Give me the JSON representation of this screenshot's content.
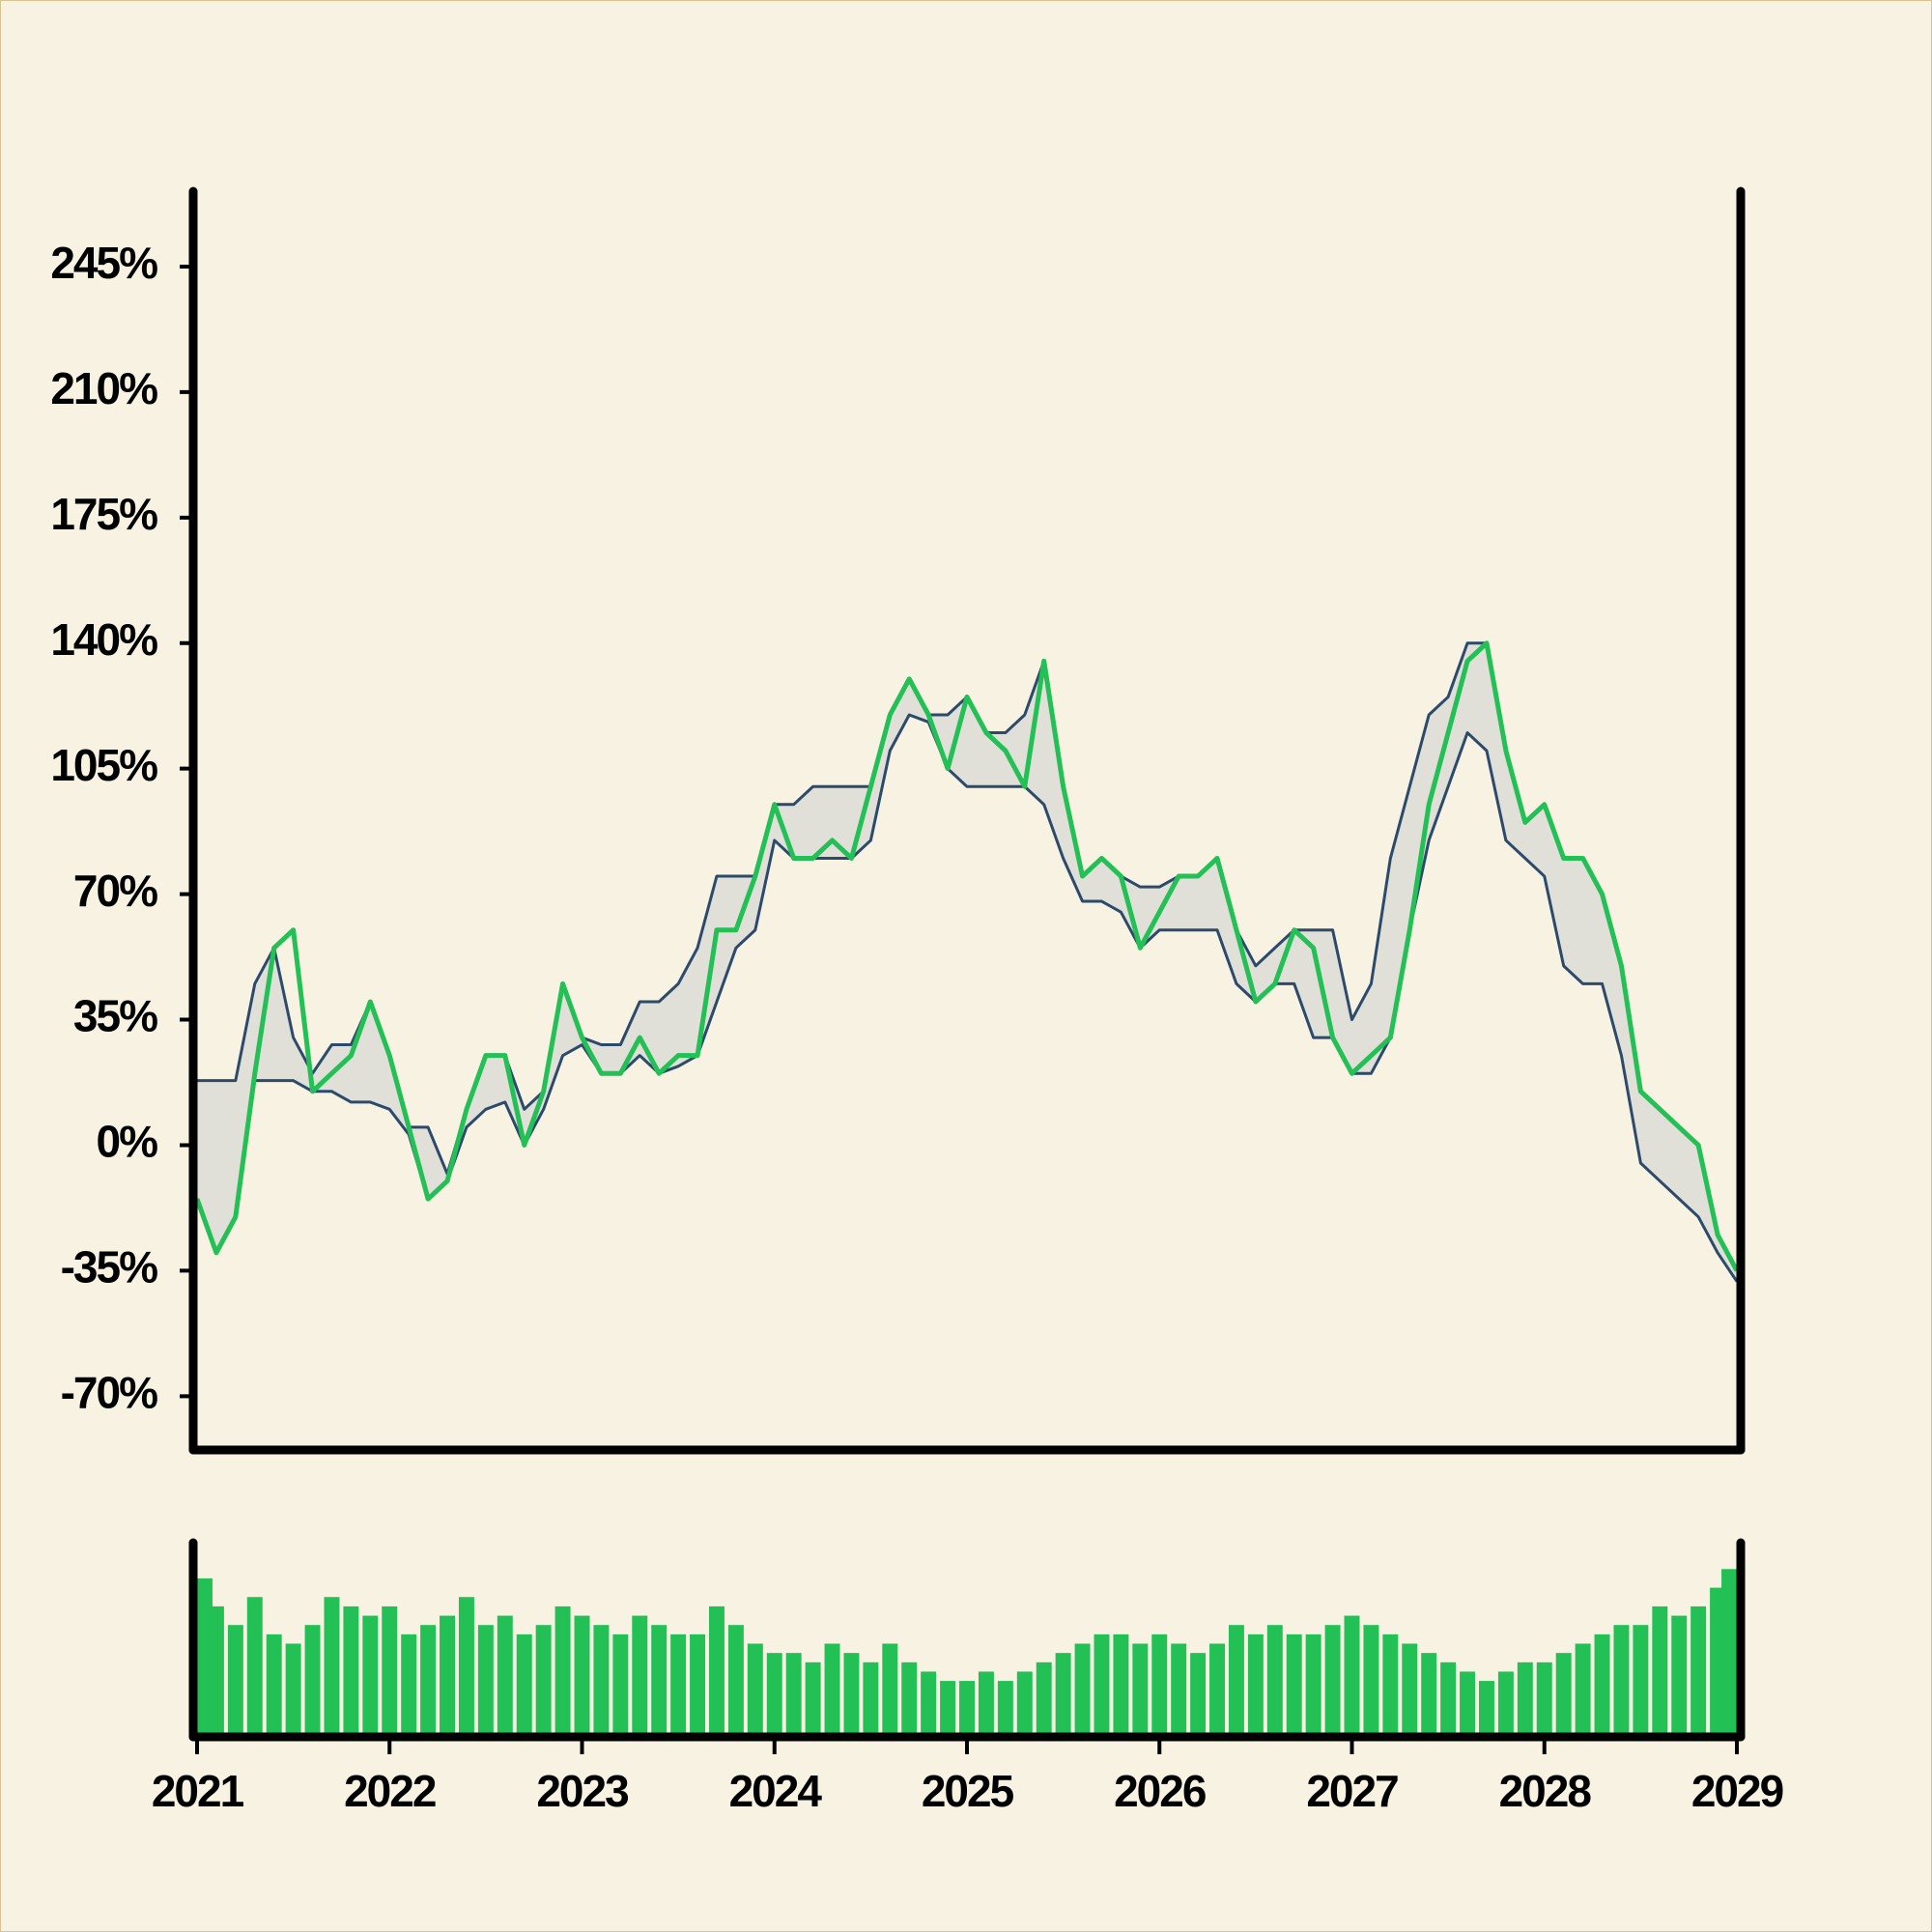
{
  "chart_data": {
    "type": "line",
    "x": [
      2021,
      2021.1,
      2021.2,
      2021.3,
      2021.4,
      2021.5,
      2021.6,
      2021.7,
      2021.8,
      2021.9,
      2022,
      2022.1,
      2022.2,
      2022.3,
      2022.4,
      2022.5,
      2022.6,
      2022.7,
      2022.8,
      2022.9,
      2023,
      2023.1,
      2023.2,
      2023.3,
      2023.4,
      2023.5,
      2023.6,
      2023.7,
      2023.8,
      2023.9,
      2024,
      2024.1,
      2024.2,
      2024.3,
      2024.4,
      2024.5,
      2024.6,
      2024.7,
      2024.8,
      2024.9,
      2025,
      2025.1,
      2025.2,
      2025.3,
      2025.4,
      2025.5,
      2025.6,
      2025.7,
      2025.8,
      2025.9,
      2026,
      2026.1,
      2026.2,
      2026.3,
      2026.4,
      2026.5,
      2026.6,
      2026.7,
      2026.8,
      2026.9,
      2027,
      2027.1,
      2027.2,
      2027.3,
      2027.4,
      2027.5,
      2027.6,
      2027.7,
      2027.8,
      2027.9,
      2028,
      2028.1,
      2028.2,
      2028.3,
      2028.4,
      2028.5,
      2028.6,
      2028.7,
      2028.8,
      2028.9,
      2029
    ],
    "series": [
      {
        "color": "#22c055",
        "values": [
          -15,
          -30,
          -20,
          20,
          55,
          60,
          15,
          20,
          25,
          40,
          25,
          5,
          -15,
          -10,
          10,
          25,
          25,
          0,
          15,
          45,
          30,
          20,
          20,
          30,
          20,
          25,
          25,
          60,
          60,
          75,
          95,
          80,
          80,
          85,
          80,
          100,
          120,
          130,
          120,
          105,
          125,
          115,
          110,
          100,
          135,
          100,
          75,
          80,
          75,
          55,
          65,
          75,
          75,
          80,
          60,
          40,
          45,
          60,
          55,
          30,
          20,
          25,
          30,
          60,
          95,
          115,
          135,
          140,
          110,
          90,
          95,
          80,
          80,
          70,
          50,
          15,
          10,
          5,
          0,
          -25,
          -35
        ]
      },
      {
        "color": "#2c4a6b",
        "values": [
          18,
          18,
          18,
          45,
          55,
          30,
          20,
          28,
          28,
          40,
          25,
          5,
          5,
          -8,
          10,
          25,
          25,
          10,
          15,
          45,
          30,
          28,
          28,
          40,
          40,
          45,
          55,
          75,
          75,
          75,
          95,
          95,
          100,
          100,
          100,
          100,
          120,
          130,
          120,
          120,
          125,
          115,
          115,
          120,
          135,
          100,
          75,
          80,
          75,
          72,
          72,
          75,
          75,
          80,
          60,
          50,
          55,
          60,
          60,
          60,
          35,
          45,
          80,
          100,
          120,
          125,
          140,
          140,
          110,
          90,
          95,
          80,
          80,
          70,
          50,
          15,
          10,
          5,
          0,
          -25,
          -35
        ]
      },
      {
        "color": "#2c4a6b",
        "values": [
          -15,
          -30,
          -20,
          18,
          18,
          18,
          15,
          15,
          12,
          12,
          10,
          3,
          -15,
          -10,
          5,
          10,
          12,
          0,
          10,
          25,
          28,
          20,
          20,
          25,
          20,
          22,
          25,
          40,
          55,
          60,
          85,
          80,
          80,
          80,
          80,
          85,
          110,
          120,
          118,
          105,
          100,
          100,
          100,
          100,
          95,
          80,
          68,
          68,
          65,
          55,
          60,
          60,
          60,
          60,
          45,
          40,
          45,
          45,
          30,
          30,
          20,
          20,
          30,
          60,
          85,
          100,
          115,
          110,
          85,
          80,
          75,
          50,
          45,
          45,
          25,
          -5,
          -10,
          -15,
          -20,
          -30,
          -38
        ]
      }
    ],
    "band_color": "#e0e0d8",
    "volume": {
      "color": "#22c055",
      "ylim": [
        0,
        100
      ],
      "values": [
        85,
        70,
        60,
        75,
        55,
        50,
        60,
        75,
        70,
        65,
        70,
        55,
        60,
        65,
        75,
        60,
        65,
        55,
        60,
        70,
        65,
        60,
        55,
        65,
        60,
        55,
        55,
        70,
        60,
        50,
        45,
        45,
        40,
        50,
        45,
        40,
        50,
        40,
        35,
        30,
        30,
        35,
        30,
        35,
        40,
        45,
        50,
        55,
        55,
        50,
        55,
        50,
        45,
        50,
        60,
        55,
        60,
        55,
        55,
        60,
        65,
        60,
        55,
        50,
        45,
        40,
        35,
        30,
        35,
        40,
        40,
        45,
        50,
        55,
        60,
        60,
        70,
        65,
        70,
        80,
        90
      ]
    },
    "xlim": [
      2021,
      2029
    ],
    "xticks": [
      2021,
      2022,
      2023,
      2024,
      2025,
      2026,
      2027,
      2028,
      2029
    ],
    "ylim": [
      -85,
      266
    ],
    "yticks": [
      {
        "value": -70,
        "label": "-70%"
      },
      {
        "value": -35,
        "label": "-35%"
      },
      {
        "value": 0,
        "label": "0%"
      },
      {
        "value": 35,
        "label": "35%"
      },
      {
        "value": 70,
        "label": "70%"
      },
      {
        "value": 105,
        "label": "105%"
      },
      {
        "value": 140,
        "label": "140%"
      },
      {
        "value": 175,
        "label": "175%"
      },
      {
        "value": 210,
        "label": "210%"
      },
      {
        "value": 245,
        "label": "245%"
      }
    ]
  }
}
